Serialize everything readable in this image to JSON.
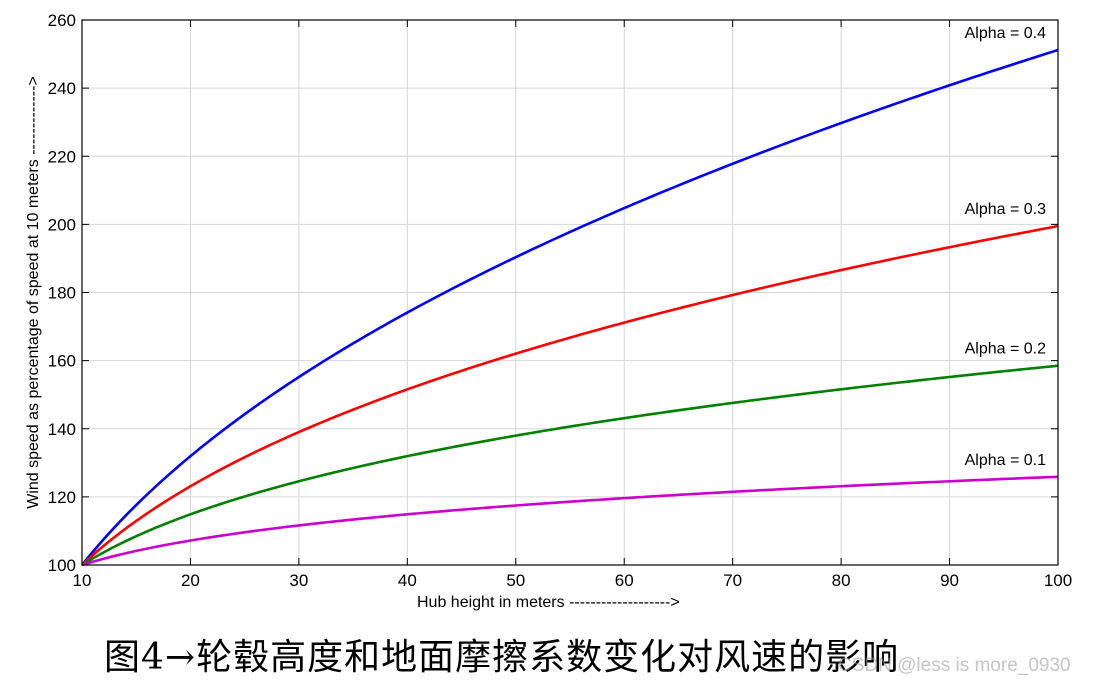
{
  "chart_data": {
    "type": "line",
    "xlabel": "Hub height in meters ------------------->",
    "ylabel": "Wind speed as percentage of speed at 10 meters ------------->",
    "xlim": [
      10,
      100
    ],
    "ylim": [
      100,
      260
    ],
    "xticks": [
      10,
      20,
      30,
      40,
      50,
      60,
      70,
      80,
      90,
      100
    ],
    "yticks": [
      100,
      120,
      140,
      160,
      180,
      200,
      220,
      240,
      260
    ],
    "grid": true,
    "x": [
      10,
      20,
      30,
      40,
      50,
      60,
      70,
      80,
      90,
      100
    ],
    "series": [
      {
        "name": "Alpha = 0.4",
        "color": "#0000ff",
        "values": [
          100,
          132.0,
          155.2,
          174.1,
          190.4,
          204.9,
          217.8,
          229.7,
          240.7,
          251.2
        ]
      },
      {
        "name": "Alpha = 0.3",
        "color": "#ff0000",
        "values": [
          100,
          123.1,
          139.0,
          151.6,
          162.1,
          171.2,
          179.3,
          186.6,
          193.2,
          199.5
        ]
      },
      {
        "name": "Alpha = 0.2",
        "color": "#008000",
        "values": [
          100,
          114.9,
          124.6,
          132.0,
          138.0,
          143.1,
          147.6,
          151.6,
          155.2,
          158.5
        ]
      },
      {
        "name": "Alpha = 0.1",
        "color": "#cc00cc",
        "values": [
          100,
          107.2,
          111.6,
          114.9,
          117.5,
          119.6,
          121.5,
          123.1,
          124.6,
          125.9
        ]
      }
    ]
  },
  "caption": "图4→轮毂高度和地面摩擦系数变化对风速的影响",
  "watermark": "CSDN @less is more_0930"
}
